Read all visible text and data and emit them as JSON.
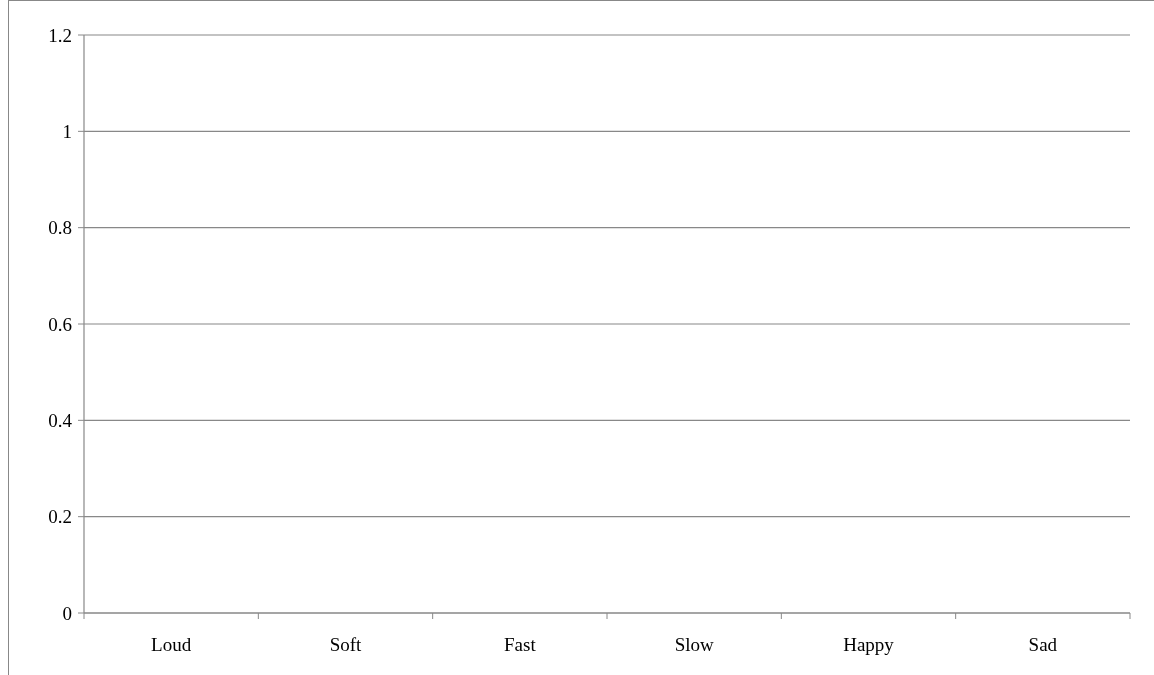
{
  "chart_data": {
    "type": "bar",
    "categories": [
      "Loud",
      "Soft",
      "Fast",
      "Slow",
      "Happy",
      "Sad"
    ],
    "values": [
      null,
      null,
      null,
      null,
      null,
      null
    ],
    "ylim": [
      0,
      1.2
    ],
    "yticks": [
      0,
      0.2,
      0.4,
      0.6,
      0.8,
      1,
      1.2
    ],
    "grid": "y"
  }
}
